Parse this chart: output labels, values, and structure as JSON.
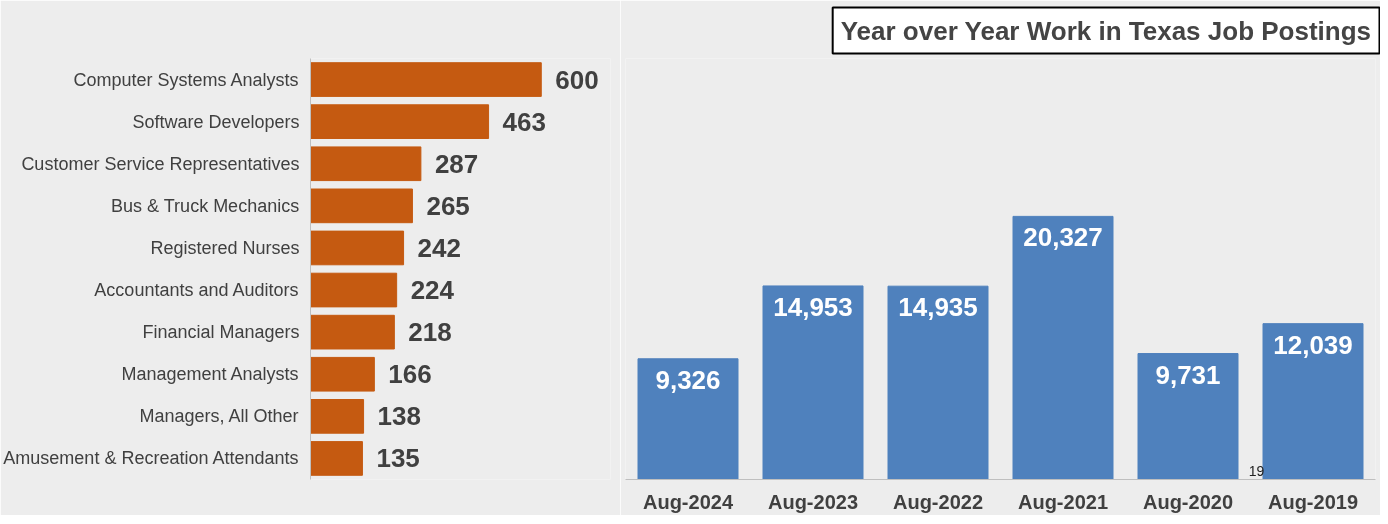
{
  "chart_data": [
    {
      "type": "bar",
      "orientation": "horizontal",
      "categories": [
        "Computer Systems Analysts",
        "Software Developers",
        "Customer Service Representatives",
        "Bus & Truck Mechanics",
        "Registered Nurses",
        "Accountants and Auditors",
        "Financial Managers",
        "Management Analysts",
        "Managers, All Other",
        "Amusement & Recreation Attendants"
      ],
      "values": [
        600,
        463,
        287,
        265,
        242,
        224,
        218,
        166,
        138,
        135
      ],
      "color": "#c55a11",
      "data_labels": true,
      "tick_labels": "y",
      "grid": false
    },
    {
      "type": "bar",
      "title": "Year over Year Work in Texas Job Postings",
      "categories": [
        "Aug-2024",
        "Aug-2023",
        "Aug-2022",
        "Aug-2021",
        "Aug-2020",
        "Aug-2019"
      ],
      "values": [
        9326,
        14953,
        14935,
        20327,
        9731,
        12039
      ],
      "value_labels": [
        "9,326",
        "14,953",
        "14,935",
        "20,327",
        "9,731",
        "12,039"
      ],
      "color": "#4f81bd",
      "tick_labels": "x",
      "grid": false,
      "annotations": [
        "19"
      ]
    }
  ]
}
